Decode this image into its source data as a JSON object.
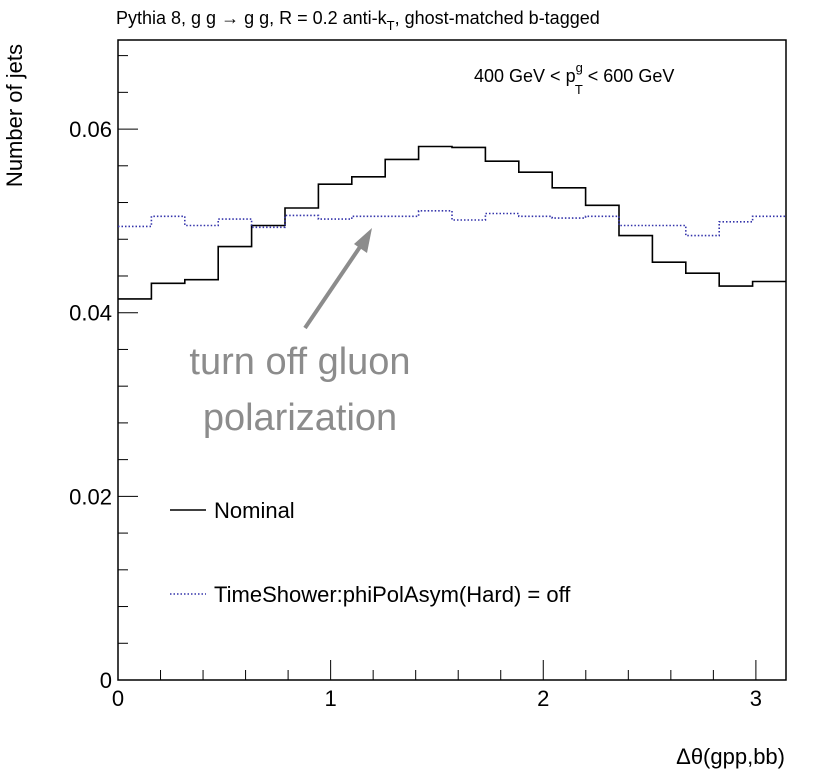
{
  "chart_data": {
    "type": "histogram-step",
    "title_parts": {
      "before_sub": "Pythia 8, g g → g g, R = 0.2 anti-k",
      "sub": "T",
      "after_sub": ", ghost-matched b-tagged"
    },
    "xlabel": "Δθ(gpp,bb)",
    "ylabel": "Number of jets",
    "xlim": [
      0,
      3.1416
    ],
    "ylim": [
      0,
      0.0697
    ],
    "x_ticks": [
      0,
      1,
      2,
      3
    ],
    "x_tick_labels": [
      "0",
      "1",
      "2",
      "3"
    ],
    "y_ticks": [
      0,
      0.02,
      0.04,
      0.06
    ],
    "y_tick_labels": [
      "0",
      "0.02",
      "0.04",
      "0.06"
    ],
    "bin_edges": [
      0,
      0.1571,
      0.3142,
      0.4712,
      0.6283,
      0.7854,
      0.9425,
      1.0996,
      1.2566,
      1.4137,
      1.5708,
      1.7279,
      1.885,
      2.042,
      2.1991,
      2.3562,
      2.5133,
      2.6704,
      2.8274,
      2.9845,
      3.1416
    ],
    "series": [
      {
        "name": "Nominal",
        "style": "solid",
        "color": "#000000",
        "values": [
          0.0415,
          0.0432,
          0.0436,
          0.0472,
          0.0495,
          0.0514,
          0.054,
          0.0548,
          0.0567,
          0.0581,
          0.058,
          0.0565,
          0.0553,
          0.0536,
          0.0517,
          0.0484,
          0.0455,
          0.0443,
          0.0429,
          0.0434
        ]
      },
      {
        "name": "TimeShower:phiPolAsym(Hard) = off",
        "style": "dotted",
        "color": "#3333aa",
        "values": [
          0.0494,
          0.0505,
          0.0495,
          0.0502,
          0.0493,
          0.0506,
          0.0502,
          0.0505,
          0.0505,
          0.0511,
          0.0501,
          0.0508,
          0.0505,
          0.0503,
          0.0505,
          0.0495,
          0.0495,
          0.0484,
          0.0499,
          0.0505
        ]
      }
    ],
    "annotations": {
      "pt_range": {
        "before": "400 GeV < p",
        "sup": "g",
        "sub": "T",
        "after": " < 600 GeV"
      },
      "arrow_text_line1": "turn off gluon",
      "arrow_text_line2": "polarization"
    },
    "legend_position": "bottom-left",
    "grid": false,
    "annotation_color": "#8c8c8c"
  }
}
